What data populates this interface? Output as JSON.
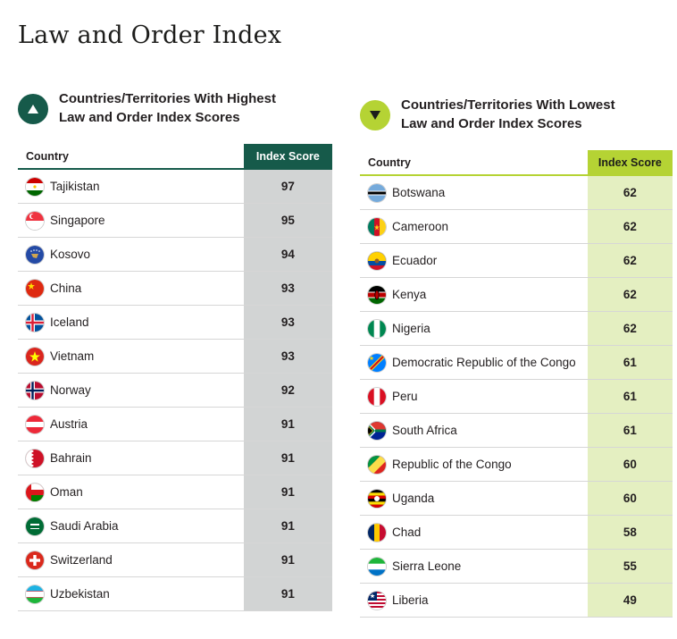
{
  "page_title": "Law and Order Index",
  "highest": {
    "title_line1": "Countries/Territories With Highest",
    "title_line2": "Law and Order Index Scores",
    "col_country": "Country",
    "col_score": "Index Score",
    "badge_icon": "arrow-up-icon",
    "colors": {
      "accent": "#165a4a",
      "score_bg": "#d2d4d4"
    },
    "rows": [
      {
        "country": "Tajikistan",
        "score": "97",
        "flag": "tajikistan"
      },
      {
        "country": "Singapore",
        "score": "95",
        "flag": "singapore"
      },
      {
        "country": "Kosovo",
        "score": "94",
        "flag": "kosovo"
      },
      {
        "country": "China",
        "score": "93",
        "flag": "china"
      },
      {
        "country": "Iceland",
        "score": "93",
        "flag": "iceland"
      },
      {
        "country": "Vietnam",
        "score": "93",
        "flag": "vietnam"
      },
      {
        "country": "Norway",
        "score": "92",
        "flag": "norway"
      },
      {
        "country": "Austria",
        "score": "91",
        "flag": "austria"
      },
      {
        "country": "Bahrain",
        "score": "91",
        "flag": "bahrain"
      },
      {
        "country": "Oman",
        "score": "91",
        "flag": "oman"
      },
      {
        "country": "Saudi Arabia",
        "score": "91",
        "flag": "saudi"
      },
      {
        "country": "Switzerland",
        "score": "91",
        "flag": "switzerland"
      },
      {
        "country": "Uzbekistan",
        "score": "91",
        "flag": "uzbekistan"
      }
    ]
  },
  "lowest": {
    "title_line1": "Countries/Territories With Lowest",
    "title_line2": "Law and Order Index Scores",
    "col_country": "Country",
    "col_score": "Index Score",
    "badge_icon": "arrow-down-icon",
    "colors": {
      "accent": "#b5d334",
      "score_bg": "#e4efc1"
    },
    "rows": [
      {
        "country": "Botswana",
        "score": "62",
        "flag": "botswana"
      },
      {
        "country": "Cameroon",
        "score": "62",
        "flag": "cameroon"
      },
      {
        "country": "Ecuador",
        "score": "62",
        "flag": "ecuador"
      },
      {
        "country": "Kenya",
        "score": "62",
        "flag": "kenya"
      },
      {
        "country": "Nigeria",
        "score": "62",
        "flag": "nigeria"
      },
      {
        "country": "Democratic Republic of the Congo",
        "score": "61",
        "flag": "drc"
      },
      {
        "country": "Peru",
        "score": "61",
        "flag": "peru"
      },
      {
        "country": "South Africa",
        "score": "61",
        "flag": "southafrica"
      },
      {
        "country": "Republic of the Congo",
        "score": "60",
        "flag": "congo"
      },
      {
        "country": "Uganda",
        "score": "60",
        "flag": "uganda"
      },
      {
        "country": "Chad",
        "score": "58",
        "flag": "chad"
      },
      {
        "country": "Sierra Leone",
        "score": "55",
        "flag": "sierraleone"
      },
      {
        "country": "Liberia",
        "score": "49",
        "flag": "liberia"
      }
    ]
  }
}
